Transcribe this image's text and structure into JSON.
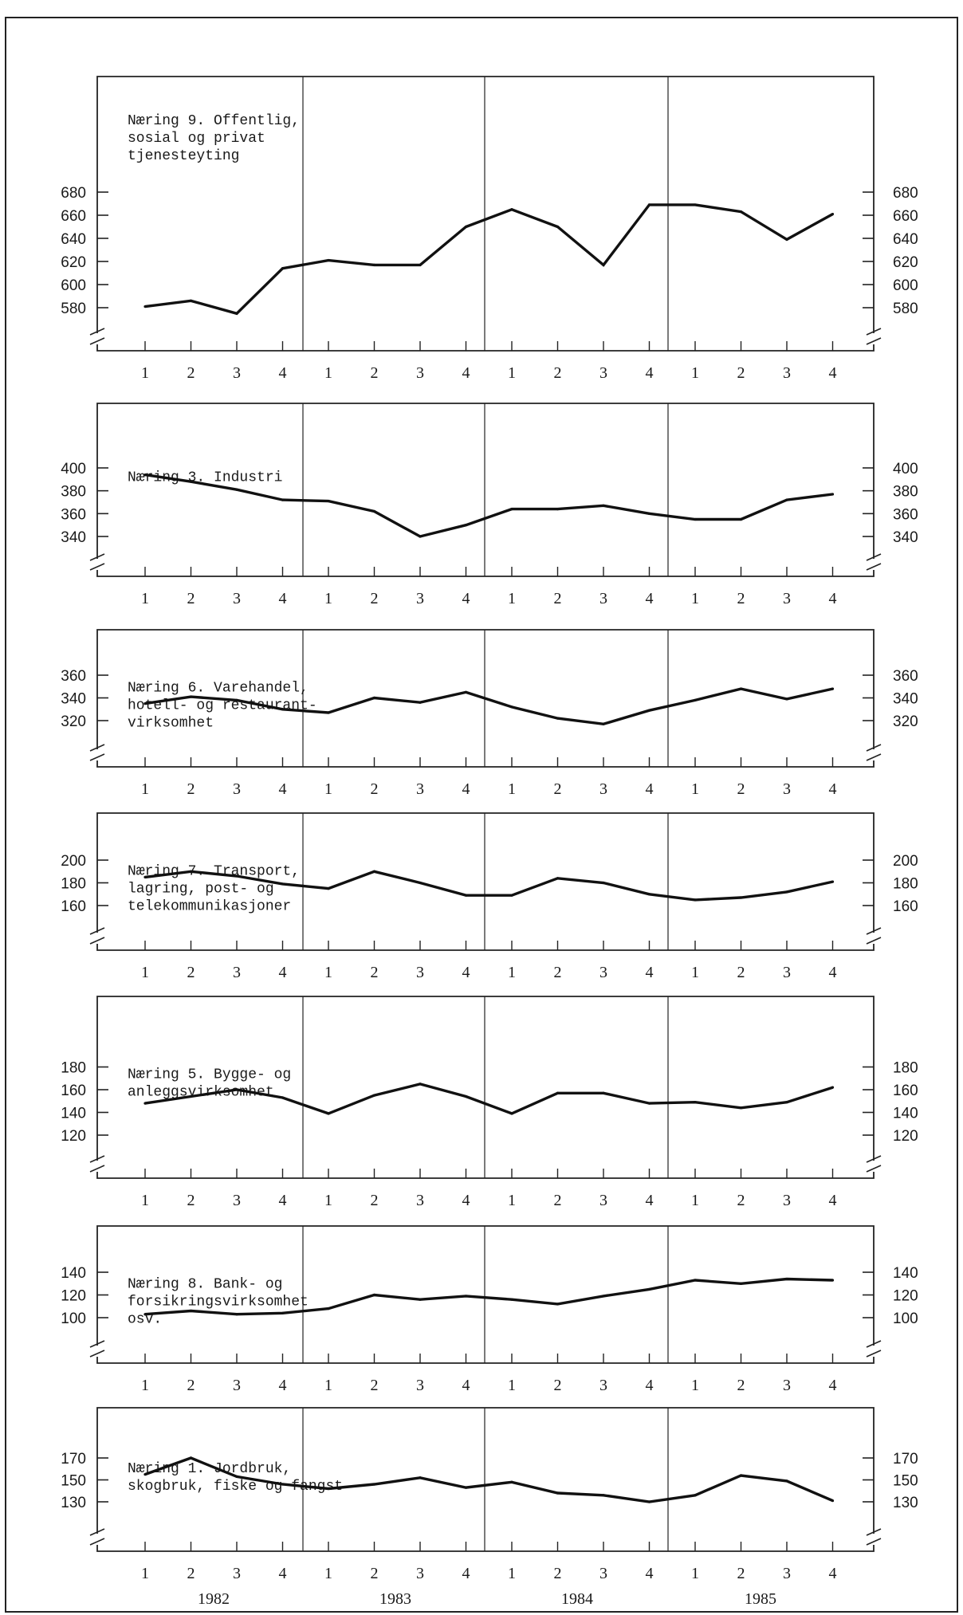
{
  "page_header": "",
  "colors": {
    "line": "#111111",
    "frame": "#222222",
    "background": "#ffffff"
  },
  "years": [
    "1982",
    "1983",
    "1984",
    "1985"
  ],
  "chart_data": [
    {
      "type": "line",
      "title_lines": [
        "Næring 9. Offentlig,",
        "sosial og privat",
        "tjenesteyting"
      ],
      "categories": [
        "1",
        "2",
        "3",
        "4",
        "1",
        "2",
        "3",
        "4",
        "1",
        "2",
        "3",
        "4",
        "1",
        "2",
        "3",
        "4"
      ],
      "values": [
        581,
        586,
        575,
        614,
        621,
        617,
        617,
        650,
        665,
        650,
        617,
        669,
        669,
        663,
        639,
        661
      ],
      "yticks": [
        580,
        600,
        620,
        640,
        660,
        680
      ],
      "ylim": [
        560,
        680
      ],
      "axis_break": true
    },
    {
      "type": "line",
      "title_lines": [
        "Næring 3.  Industri"
      ],
      "categories": [
        "1",
        "2",
        "3",
        "4",
        "1",
        "2",
        "3",
        "4",
        "1",
        "2",
        "3",
        "4",
        "1",
        "2",
        "3",
        "4"
      ],
      "values": [
        394,
        388,
        381,
        372,
        371,
        362,
        340,
        350,
        364,
        364,
        367,
        360,
        355,
        355,
        372,
        377
      ],
      "yticks": [
        340,
        360,
        380,
        400
      ],
      "ylim": [
        320,
        400
      ],
      "axis_break": true
    },
    {
      "type": "line",
      "title_lines": [
        "Næring 6.  Varehandel,",
        "hotell- og restaurant-",
        "virksomhet"
      ],
      "categories": [
        "1",
        "2",
        "3",
        "4",
        "1",
        "2",
        "3",
        "4",
        "1",
        "2",
        "3",
        "4",
        "1",
        "2",
        "3",
        "4"
      ],
      "values": [
        335,
        341,
        338,
        330,
        327,
        340,
        336,
        345,
        332,
        322,
        317,
        329,
        338,
        348,
        339,
        348
      ],
      "yticks": [
        320,
        340,
        360
      ],
      "ylim": [
        300,
        360
      ],
      "axis_break": true
    },
    {
      "type": "line",
      "title_lines": [
        "Næring 7.  Transport,",
        "lagring, post- og",
        "telekommunikasjoner"
      ],
      "categories": [
        "1",
        "2",
        "3",
        "4",
        "1",
        "2",
        "3",
        "4",
        "1",
        "2",
        "3",
        "4",
        "1",
        "2",
        "3",
        "4"
      ],
      "values": [
        185,
        190,
        186,
        179,
        175,
        190,
        180,
        169,
        169,
        184,
        180,
        170,
        165,
        167,
        172,
        181
      ],
      "yticks": [
        160,
        180,
        200
      ],
      "ylim": [
        140,
        200
      ],
      "axis_break": true
    },
    {
      "type": "line",
      "title_lines": [
        "Næring 5.  Bygge- og",
        "anleggsvirksomhet"
      ],
      "categories": [
        "1",
        "2",
        "3",
        "4",
        "1",
        "2",
        "3",
        "4",
        "1",
        "2",
        "3",
        "4",
        "1",
        "2",
        "3",
        "4"
      ],
      "values": [
        148,
        154,
        160,
        153,
        139,
        155,
        165,
        154,
        139,
        157,
        157,
        148,
        149,
        144,
        149,
        162
      ],
      "yticks": [
        120,
        140,
        160,
        180
      ],
      "ylim": [
        100,
        180
      ],
      "axis_break": true
    },
    {
      "type": "line",
      "title_lines": [
        "Næring 8.  Bank- og",
        "forsikringsvirksomhet",
        "osv."
      ],
      "categories": [
        "1",
        "2",
        "3",
        "4",
        "1",
        "2",
        "3",
        "4",
        "1",
        "2",
        "3",
        "4",
        "1",
        "2",
        "3",
        "4"
      ],
      "values": [
        103,
        106,
        103,
        104,
        108,
        120,
        116,
        119,
        116,
        112,
        119,
        125,
        133,
        130,
        134,
        133
      ],
      "yticks": [
        100,
        120,
        140
      ],
      "ylim": [
        80,
        140
      ],
      "axis_break": true
    },
    {
      "type": "line",
      "title_lines": [
        "Næring 1.  Jordbruk,",
        "skogbruk, fiske og fangst"
      ],
      "categories": [
        "1",
        "2",
        "3",
        "4",
        "1",
        "2",
        "3",
        "4",
        "1",
        "2",
        "3",
        "4",
        "1",
        "2",
        "3",
        "4"
      ],
      "values": [
        155,
        170,
        153,
        146,
        142,
        146,
        152,
        143,
        148,
        138,
        136,
        130,
        136,
        154,
        149,
        131
      ],
      "yticks": [
        130,
        150,
        170
      ],
      "ylim": [
        110,
        170
      ],
      "axis_break": true
    }
  ]
}
